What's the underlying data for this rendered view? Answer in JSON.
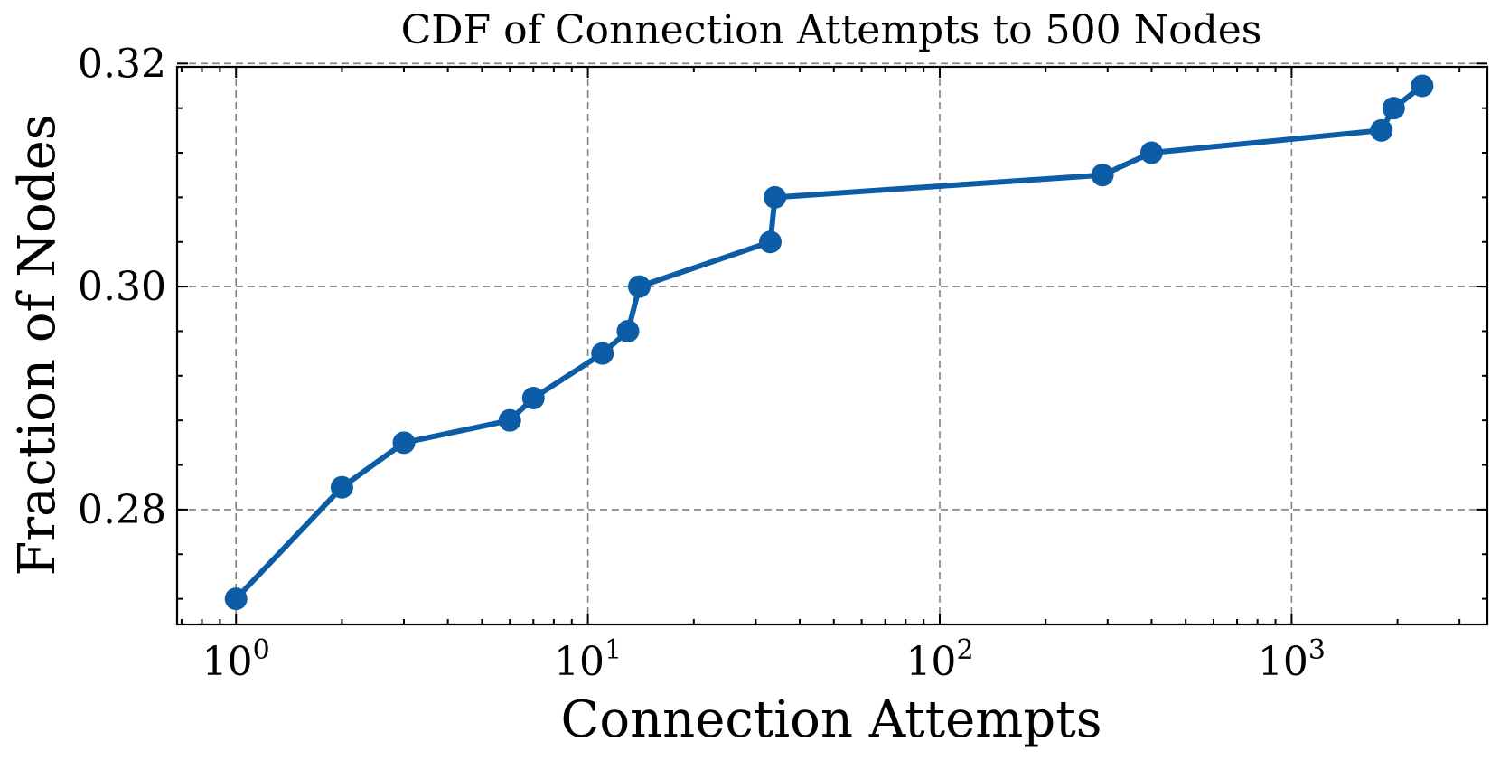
{
  "chart_data": {
    "type": "line",
    "title": "CDF of Connection Attempts to 500 Nodes",
    "xlabel": "Connection Attempts",
    "ylabel": "Fraction of Nodes",
    "xscale": "log",
    "xlim": [
      0.68,
      3600
    ],
    "ylim": [
      0.2697,
      0.3197
    ],
    "grid": true,
    "color": "#0c5da5",
    "xticks": [
      {
        "base": "10",
        "exp": "0",
        "value": 1
      },
      {
        "base": "10",
        "exp": "1",
        "value": 10
      },
      {
        "base": "10",
        "exp": "2",
        "value": 100
      },
      {
        "base": "10",
        "exp": "3",
        "value": 1000
      }
    ],
    "yticks": [
      "0.28",
      "0.30",
      "0.32"
    ],
    "series": [
      {
        "x": [
          1,
          2,
          3,
          6,
          7,
          11,
          13,
          14,
          33,
          34,
          290,
          400,
          1800,
          1950,
          2350
        ],
        "y": [
          0.272,
          0.282,
          0.286,
          0.288,
          0.29,
          0.294,
          0.296,
          0.3,
          0.304,
          0.308,
          0.31,
          0.312,
          0.314,
          0.316,
          0.318
        ]
      }
    ]
  }
}
